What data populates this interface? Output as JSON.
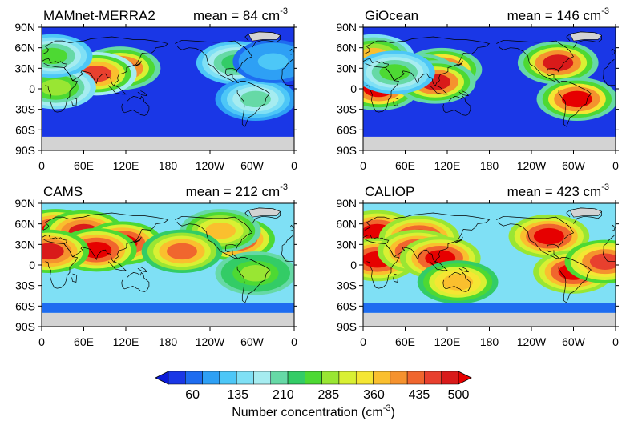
{
  "chart_data": {
    "type": "heatmap",
    "panels": [
      {
        "title": "MAMnet-MERRA2",
        "mean_value": 84,
        "mean_text": "mean = 84 cm",
        "mean_exponent": "-3",
        "background_value": 45,
        "polar_fill": {
          "south_band_value": 30,
          "south_land": "missing",
          "north_caps": "missing"
        },
        "hotspots": [
          {
            "region": "East China",
            "lon": 112,
            "lat": 30,
            "value": 480
          },
          {
            "region": "India",
            "lon": 78,
            "lat": 22,
            "value": 450
          },
          {
            "region": "Central Africa",
            "lon": 20,
            "lat": 2,
            "value": 300
          },
          {
            "region": "Europe",
            "lon": 15,
            "lat": 48,
            "value": 260
          },
          {
            "region": "Eastern US",
            "lon": 278,
            "lat": 38,
            "value": 230
          },
          {
            "region": "South America",
            "lon": 305,
            "lat": -15,
            "value": 210
          },
          {
            "region": "North Atlantic",
            "lon": 330,
            "lat": 40,
            "value": 110
          }
        ]
      },
      {
        "title": "GiOcean",
        "mean_value": 146,
        "mean_text": "mean = 146 cm",
        "mean_exponent": "-3",
        "background_value": 40,
        "polar_fill": {
          "south_band_value": 25,
          "south_land": "missing",
          "north_caps": "missing"
        },
        "hotspots": [
          {
            "region": "East China",
            "lon": 112,
            "lat": 28,
            "value": 500
          },
          {
            "region": "India",
            "lon": 78,
            "lat": 20,
            "value": 500
          },
          {
            "region": "Central Africa",
            "lon": 22,
            "lat": 0,
            "value": 500
          },
          {
            "region": "Europe",
            "lon": 15,
            "lat": 48,
            "value": 360
          },
          {
            "region": "Southeast Asia",
            "lon": 103,
            "lat": 10,
            "value": 480
          },
          {
            "region": "Eastern US",
            "lon": 278,
            "lat": 38,
            "value": 480
          },
          {
            "region": "South America",
            "lon": 305,
            "lat": -15,
            "value": 500
          },
          {
            "region": "Arabia",
            "lon": 45,
            "lat": 24,
            "value": 260
          }
        ]
      },
      {
        "title": "CAMS",
        "mean_value": 212,
        "mean_text": "mean = 212 cm",
        "mean_exponent": "-3",
        "background_value": 140,
        "polar_fill": {
          "south_band_value": 60,
          "south_land": "missing",
          "north_caps": "missing"
        },
        "hotspots": [
          {
            "region": "Europe",
            "lon": 20,
            "lat": 50,
            "value": 500
          },
          {
            "region": "Eurasia",
            "lon": 60,
            "lat": 48,
            "value": 480
          },
          {
            "region": "East China",
            "lon": 115,
            "lat": 32,
            "value": 500
          },
          {
            "region": "India",
            "lon": 78,
            "lat": 22,
            "value": 500
          },
          {
            "region": "North Africa",
            "lon": 10,
            "lat": 20,
            "value": 480
          },
          {
            "region": "Eastern US",
            "lon": 275,
            "lat": 38,
            "value": 500
          },
          {
            "region": "North America",
            "lon": 255,
            "lat": 50,
            "value": 360
          },
          {
            "region": "Hawaii",
            "lon": 200,
            "lat": 20,
            "value": 420
          },
          {
            "region": "South America",
            "lon": 305,
            "lat": -12,
            "value": 300
          }
        ]
      },
      {
        "title": "CALIOP",
        "mean_value": 423,
        "mean_text": "mean = 423 cm",
        "mean_exponent": "-3",
        "background_value": 160,
        "polar_fill": {
          "south_band_value": 75,
          "south_land": "missing",
          "north_caps": "missing"
        },
        "hotspots": [
          {
            "region": "Europe",
            "lon": 20,
            "lat": 48,
            "value": 500
          },
          {
            "region": "Asia",
            "lon": 80,
            "lat": 40,
            "value": 500
          },
          {
            "region": "Africa",
            "lon": 20,
            "lat": 8,
            "value": 500
          },
          {
            "region": "India",
            "lon": 78,
            "lat": 20,
            "value": 500
          },
          {
            "region": "Southeast Asia",
            "lon": 110,
            "lat": 10,
            "value": 500
          },
          {
            "region": "North America",
            "lon": 265,
            "lat": 42,
            "value": 500
          },
          {
            "region": "South America",
            "lon": 300,
            "lat": -10,
            "value": 500
          },
          {
            "region": "Australia",
            "lon": 135,
            "lat": -25,
            "value": 380
          },
          {
            "region": "Tropical Atlantic",
            "lon": 345,
            "lat": 5,
            "value": 450
          }
        ]
      }
    ],
    "x_ticks": [
      "0",
      "60E",
      "120E",
      "180",
      "120W",
      "60W",
      "0"
    ],
    "x_tick_values": [
      0,
      60,
      120,
      180,
      240,
      300,
      360
    ],
    "y_ticks": [
      "90N",
      "60N",
      "30N",
      "0",
      "30S",
      "60S",
      "90S"
    ],
    "y_tick_values": [
      90,
      60,
      30,
      0,
      -30,
      -60,
      -90
    ],
    "xlim": [
      0,
      360
    ],
    "ylim": [
      -90,
      90
    ],
    "colorbar": {
      "label": "Number concentration (cm",
      "label_exponent": "-3",
      "label_close": ")",
      "levels": [
        60,
        135,
        210,
        285,
        360,
        435,
        500
      ],
      "range": [
        20,
        500
      ],
      "colors": [
        "#1a37e6",
        "#1e6cf0",
        "#2ea0f5",
        "#4dc7f7",
        "#7fe0f5",
        "#a6ecf0",
        "#66d9a6",
        "#33cc66",
        "#4dd933",
        "#99e633",
        "#d9f033",
        "#f5e633",
        "#fabf2e",
        "#f5922e",
        "#f0662e",
        "#e8402e",
        "#d91a1a"
      ],
      "under_color": "#0a1ad9",
      "over_color": "#e60000",
      "missing_color": "#d3d3d3"
    }
  }
}
